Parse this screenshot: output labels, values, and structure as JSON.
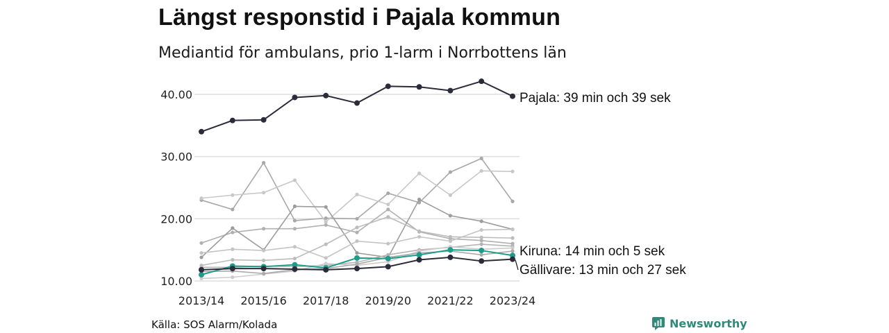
{
  "header": {
    "title": "Längst responstid i Pajala kommun",
    "subtitle": "Mediantid för ambulans, prio 1-larm i Norrbottens län"
  },
  "footer": {
    "source": "Källa: SOS Alarm/Kolada",
    "brand": "Newsworthy"
  },
  "colors": {
    "highlight_dark": "#2b2b3a",
    "highlight_teal": "#1e9c8a",
    "background_series": "#b8b8b8",
    "grid": "#dddddd",
    "brand": "#2e8b7a"
  },
  "icons": {
    "brand_logo": "newsworthy-logo-icon"
  },
  "chart_data": {
    "type": "line",
    "title": "Längst responstid i Pajala kommun",
    "subtitle": "Mediantid för ambulans, prio 1-larm i Norrbottens län",
    "xlabel": "",
    "ylabel": "",
    "ylim": [
      9.5,
      43
    ],
    "yticks": [
      10,
      20,
      30,
      40
    ],
    "ytick_labels": [
      "10.00",
      "20.00",
      "30.00",
      "40.00"
    ],
    "x": [
      "2013/14",
      "2014/15",
      "2015/16",
      "2016/17",
      "2017/18",
      "2018/19",
      "2019/20",
      "2020/21",
      "2021/22",
      "2022/23",
      "2023/24"
    ],
    "xtick_labels": [
      "2013/14",
      "2015/16",
      "2017/18",
      "2019/20",
      "2021/22",
      "2023/24"
    ],
    "grid": true,
    "legend": "none",
    "series": [
      {
        "name": "Pajala",
        "highlight": "dark",
        "values": [
          34.0,
          35.8,
          35.9,
          39.5,
          39.8,
          38.6,
          41.3,
          41.2,
          40.6,
          42.1,
          39.7
        ]
      },
      {
        "name": "Kiruna",
        "highlight": "teal",
        "values": [
          11.0,
          12.4,
          12.3,
          12.6,
          12.1,
          13.7,
          13.6,
          14.2,
          15.0,
          14.9,
          14.1
        ]
      },
      {
        "name": "Gällivare",
        "highlight": "dark",
        "values": [
          11.8,
          12.0,
          12.0,
          11.9,
          11.8,
          12.0,
          12.3,
          13.4,
          13.8,
          13.2,
          13.5
        ]
      },
      {
        "values": [
          23.0,
          21.5,
          29.0,
          19.7,
          20.1,
          20.0,
          24.1,
          22.6,
          27.5,
          29.7,
          22.8
        ]
      },
      {
        "values": [
          23.3,
          23.8,
          24.2,
          26.2,
          19.5,
          23.9,
          22.3,
          27.3,
          23.8,
          27.7,
          27.6
        ]
      },
      {
        "values": [
          16.1,
          17.8,
          18.4,
          18.4,
          19.0,
          17.8,
          21.5,
          17.9,
          16.8,
          16.5,
          16.0
        ]
      },
      {
        "values": [
          13.8,
          18.5,
          15.0,
          22.0,
          21.9,
          14.5,
          13.8,
          23.1,
          20.5,
          19.6,
          18.3
        ]
      },
      {
        "values": [
          14.5,
          15.1,
          14.9,
          15.5,
          13.7,
          16.4,
          16.0,
          17.1,
          16.4,
          18.2,
          18.3
        ]
      },
      {
        "values": [
          12.5,
          13.4,
          13.3,
          13.6,
          15.9,
          18.6,
          20.3,
          18.0,
          17.1,
          17.0,
          16.9
        ]
      },
      {
        "values": [
          12.2,
          12.2,
          12.4,
          12.3,
          12.5,
          13.0,
          14.2,
          15.0,
          15.4,
          15.9,
          15.6
        ]
      },
      {
        "values": [
          10.4,
          10.6,
          11.1,
          11.6,
          12.8,
          12.5,
          13.1,
          14.8,
          15.5,
          15.1,
          15.3
        ]
      },
      {
        "values": [
          11.5,
          11.6,
          11.2,
          11.8,
          12.0,
          12.7,
          13.8,
          14.5,
          14.8,
          14.2,
          14.8
        ]
      }
    ],
    "annotations": [
      {
        "series": "Pajala",
        "text": "Pajala: 39 min och 39 sek"
      },
      {
        "series": "Kiruna",
        "text": "Kiruna: 14 min och 5 sek"
      },
      {
        "series": "Gällivare",
        "text": "Gällivare: 13 min och 27 sek"
      }
    ]
  }
}
